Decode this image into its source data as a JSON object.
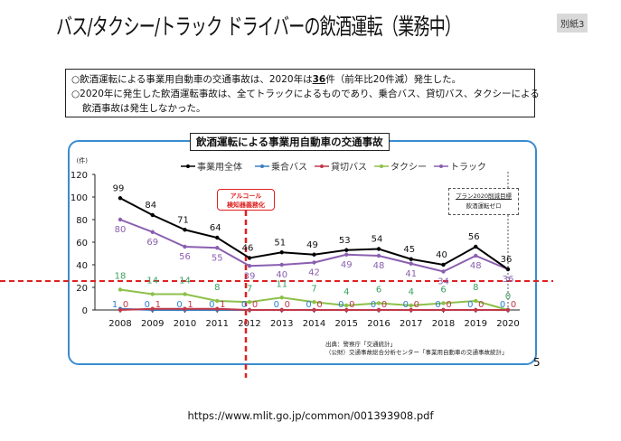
{
  "title": "バス/タクシー/トラック ドライバーの飲酒運転（業務中）",
  "appendix_label": "別紙3",
  "summary": {
    "line1_pre": "○飲酒運転による事業用自動車の交通事故は、2020年は",
    "line1_num": "36",
    "line1_post": "件（前年比20件減）発生した。",
    "line2": "○2020年に発生した飲酒運転事故は、全てトラックによるものであり、乗合バス、貸切バス、タクシーによる",
    "line3": "飲酒事故は発生しなかった。"
  },
  "annotations": {
    "alcohol_line1": "アルコール",
    "alcohol_line2": "検知器義務化",
    "plan_line1": "プラン2020削減目標",
    "plan_line2": "飲酒運転ゼロ"
  },
  "source": {
    "line1": "出典：警察庁「交通統計」",
    "line2": "（公財）交通事故総合分析センター「事業用自動車の交通事故統計」"
  },
  "page_number": "5",
  "url": "https://www.mlit.go.jp/common/001393908.pdf",
  "chart_data": {
    "type": "line",
    "title": "飲酒運転による事業用自動車の交通事故",
    "ylabel": "(件)",
    "xlabel": "",
    "ylim": [
      0,
      120
    ],
    "yticks": [
      0,
      20,
      40,
      60,
      80,
      100,
      120
    ],
    "categories": [
      "2008",
      "2009",
      "2010",
      "2011",
      "2012",
      "2013",
      "2014",
      "2015",
      "2016",
      "2017",
      "2018",
      "2019",
      "2020"
    ],
    "legend_position": "top",
    "grid": false,
    "series": [
      {
        "name": "事業用全体",
        "color": "#000000",
        "values": [
          99,
          84,
          71,
          64,
          46,
          51,
          49,
          53,
          54,
          45,
          40,
          56,
          36
        ]
      },
      {
        "name": "乗合バス",
        "color": "#3a7fc1",
        "values": [
          1,
          0,
          0,
          0,
          0,
          0,
          0,
          0,
          0,
          0,
          0,
          0,
          0
        ]
      },
      {
        "name": "貸切バス",
        "color": "#c0394a",
        "values": [
          0,
          1,
          1,
          1,
          0,
          0,
          0,
          0,
          0,
          0,
          0,
          0,
          0
        ]
      },
      {
        "name": "タクシー",
        "color": "#8dc04a",
        "values": [
          18,
          14,
          14,
          8,
          7,
          11,
          7,
          4,
          6,
          4,
          6,
          8,
          0
        ]
      },
      {
        "name": "トラック",
        "color": "#8a5fb0",
        "values": [
          80,
          69,
          56,
          55,
          39,
          40,
          42,
          49,
          48,
          41,
          34,
          48,
          36
        ]
      }
    ],
    "label_colors": {
      "事業用全体": "#111111",
      "乗合バス": "#2f7fd0",
      "貸切バス": "#c0394a",
      "タクシー": "#3aa060",
      "トラック": "#8a5fb0"
    },
    "reference_lines_color": "#e02020"
  }
}
